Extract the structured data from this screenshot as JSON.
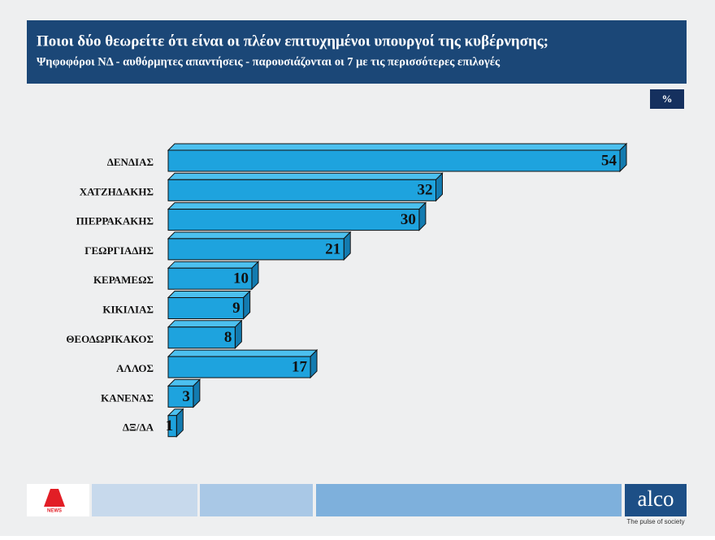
{
  "chart_data": {
    "type": "bar3d",
    "title": "Ποιοι δύο θεωρείτε ότι είναι οι πλέον επιτυχημένοι υπουργοί της κυβέρνησης;",
    "subtitle": "Ψηφοφόροι ΝΔ - αυθόρμητες απαντήσεις - παρουσιάζονται οι 7 με τις περισσότερες επιλογές",
    "unit": "%",
    "categories": [
      "ΔΕΝΔΙΑΣ",
      "ΧΑΤΖΗΔΑΚΗΣ",
      "ΠΙΕΡΡΑΚΑΚΗΣ",
      "ΓΕΩΡΓΙΑΔΗΣ",
      "ΚΕΡΑΜΕΩΣ",
      "ΚΙΚΙΛΙΑΣ",
      "ΘΕΟΔΩΡΙΚΑΚΟΣ",
      "ΑΛΛΟΣ",
      "ΚΑΝΕΝΑΣ",
      "ΔΞ/ΔΑ"
    ],
    "values": [
      54,
      32,
      30,
      21,
      10,
      9,
      8,
      17,
      3,
      1
    ],
    "color": "#1ea3de"
  },
  "branding": {
    "news": "NEWS",
    "logo": "alco",
    "tagline": "The pulse of society"
  }
}
